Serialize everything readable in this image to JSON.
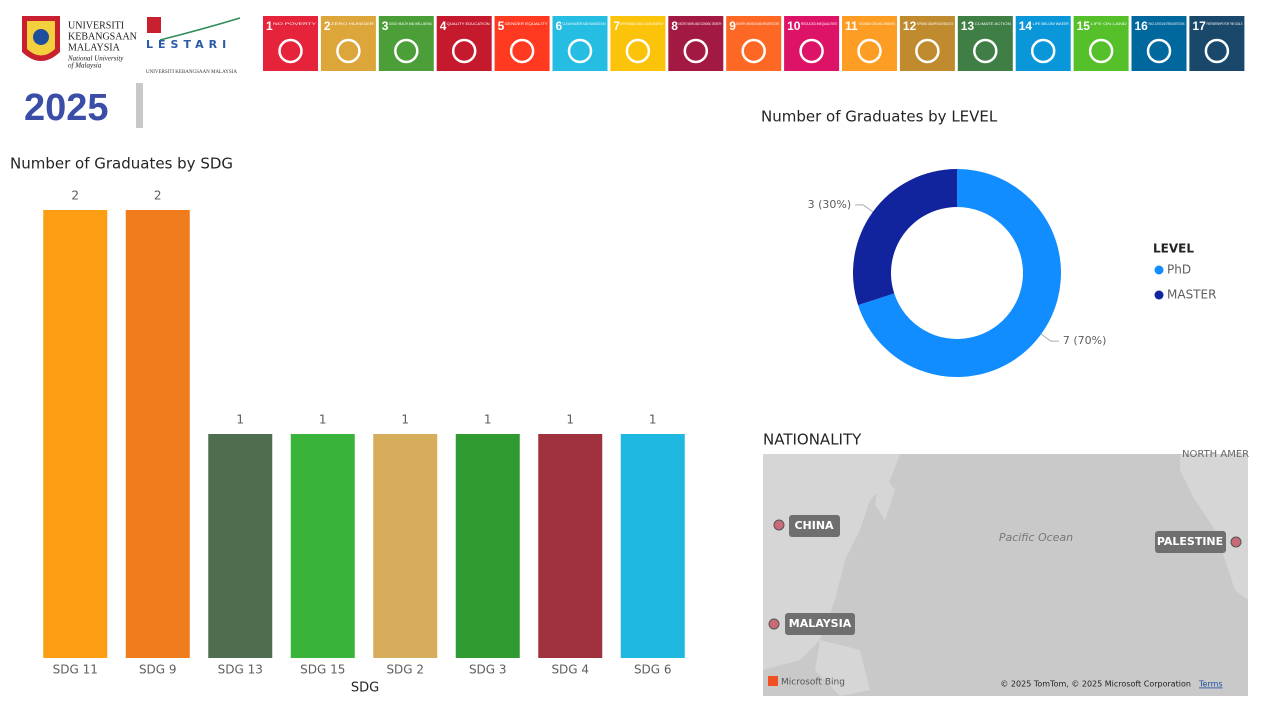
{
  "header": {
    "year": "2025",
    "ukm_lines": [
      "UNIVERSITI",
      "KEBANGSAAN",
      "MALAYSIA",
      "National University",
      "of Malaysia"
    ],
    "lestari": "LESTARI",
    "lestari_sub": "UNIVERSITI KEBANGSAAN MALAYSIA"
  },
  "sdg_icons": [
    {
      "number": 1,
      "label": "NO POVERTY",
      "color": "#e5243b"
    },
    {
      "number": 2,
      "label": "ZERO HUNGER",
      "color": "#dda63a"
    },
    {
      "number": 3,
      "label": "GOOD HEALTH AND WELL-BEING",
      "color": "#4c9f38"
    },
    {
      "number": 4,
      "label": "QUALITY EDUCATION",
      "color": "#c5192d"
    },
    {
      "number": 5,
      "label": "GENDER EQUALITY",
      "color": "#ff3a21"
    },
    {
      "number": 6,
      "label": "CLEAN WATER AND SANITATION",
      "color": "#26bde2"
    },
    {
      "number": 7,
      "label": "AFFORDABLE AND CLEAN ENERGY",
      "color": "#fcc30b"
    },
    {
      "number": 8,
      "label": "DECENT WORK AND ECONOMIC GROWTH",
      "color": "#a21942"
    },
    {
      "number": 9,
      "label": "INDUSTRY, INNOVATION AND INFRASTRUCTURE",
      "color": "#fd6925"
    },
    {
      "number": 10,
      "label": "REDUCED INEQUALITIES",
      "color": "#dd1367"
    },
    {
      "number": 11,
      "label": "SUSTAINABLE CITIES AND COMMUNITIES",
      "color": "#fd9d24"
    },
    {
      "number": 12,
      "label": "RESPONSIBLE CONSUMPTION AND PRODUCTION",
      "color": "#bf8b2e"
    },
    {
      "number": 13,
      "label": "CLIMATE ACTION",
      "color": "#3f7e44"
    },
    {
      "number": 14,
      "label": "LIFE BELOW WATER",
      "color": "#0a97d9"
    },
    {
      "number": 15,
      "label": "LIFE ON LAND",
      "color": "#56c02b"
    },
    {
      "number": 16,
      "label": "PEACE, JUSTICE AND STRONG INSTITUTIONS",
      "color": "#00689d"
    },
    {
      "number": 17,
      "label": "PARTNERSHIPS FOR THE GOALS",
      "color": "#19486a"
    }
  ],
  "chart_data": [
    {
      "type": "bar",
      "title": "Number of Graduates by SDG",
      "x_label": "SDG",
      "categories": [
        "SDG 11",
        "SDG 9",
        "SDG 13",
        "SDG 15",
        "SDG 2",
        "SDG 3",
        "SDG 4",
        "SDG 6"
      ],
      "values": [
        2,
        2,
        1,
        1,
        1,
        1,
        1,
        1
      ],
      "colors": [
        "#fd9d14",
        "#f07c1e",
        "#4f6e4f",
        "#3ab33a",
        "#d6ad5a",
        "#2f9a30",
        "#a0323f",
        "#1fb8e0"
      ],
      "ylim": [
        0,
        2
      ]
    },
    {
      "type": "pie",
      "title": "Number of Graduates by LEVEL",
      "legend_title": "LEVEL",
      "categories": [
        "PhD",
        "MASTER"
      ],
      "values": [
        7,
        3
      ],
      "value_labels": [
        "7 (70%)",
        "3 (30%)"
      ],
      "colors": [
        "#118dff",
        "#12239e"
      ]
    }
  ],
  "map": {
    "title": "NATIONALITY",
    "locations": [
      "CHINA",
      "PALESTINE",
      "MALAYSIA"
    ],
    "ocean": "Pacific Ocean",
    "region": "NORTH AMER",
    "attribution": "Microsoft Bing",
    "copyright": "© 2025 TomTom, © 2025 Microsoft Corporation",
    "terms": "Terms"
  }
}
